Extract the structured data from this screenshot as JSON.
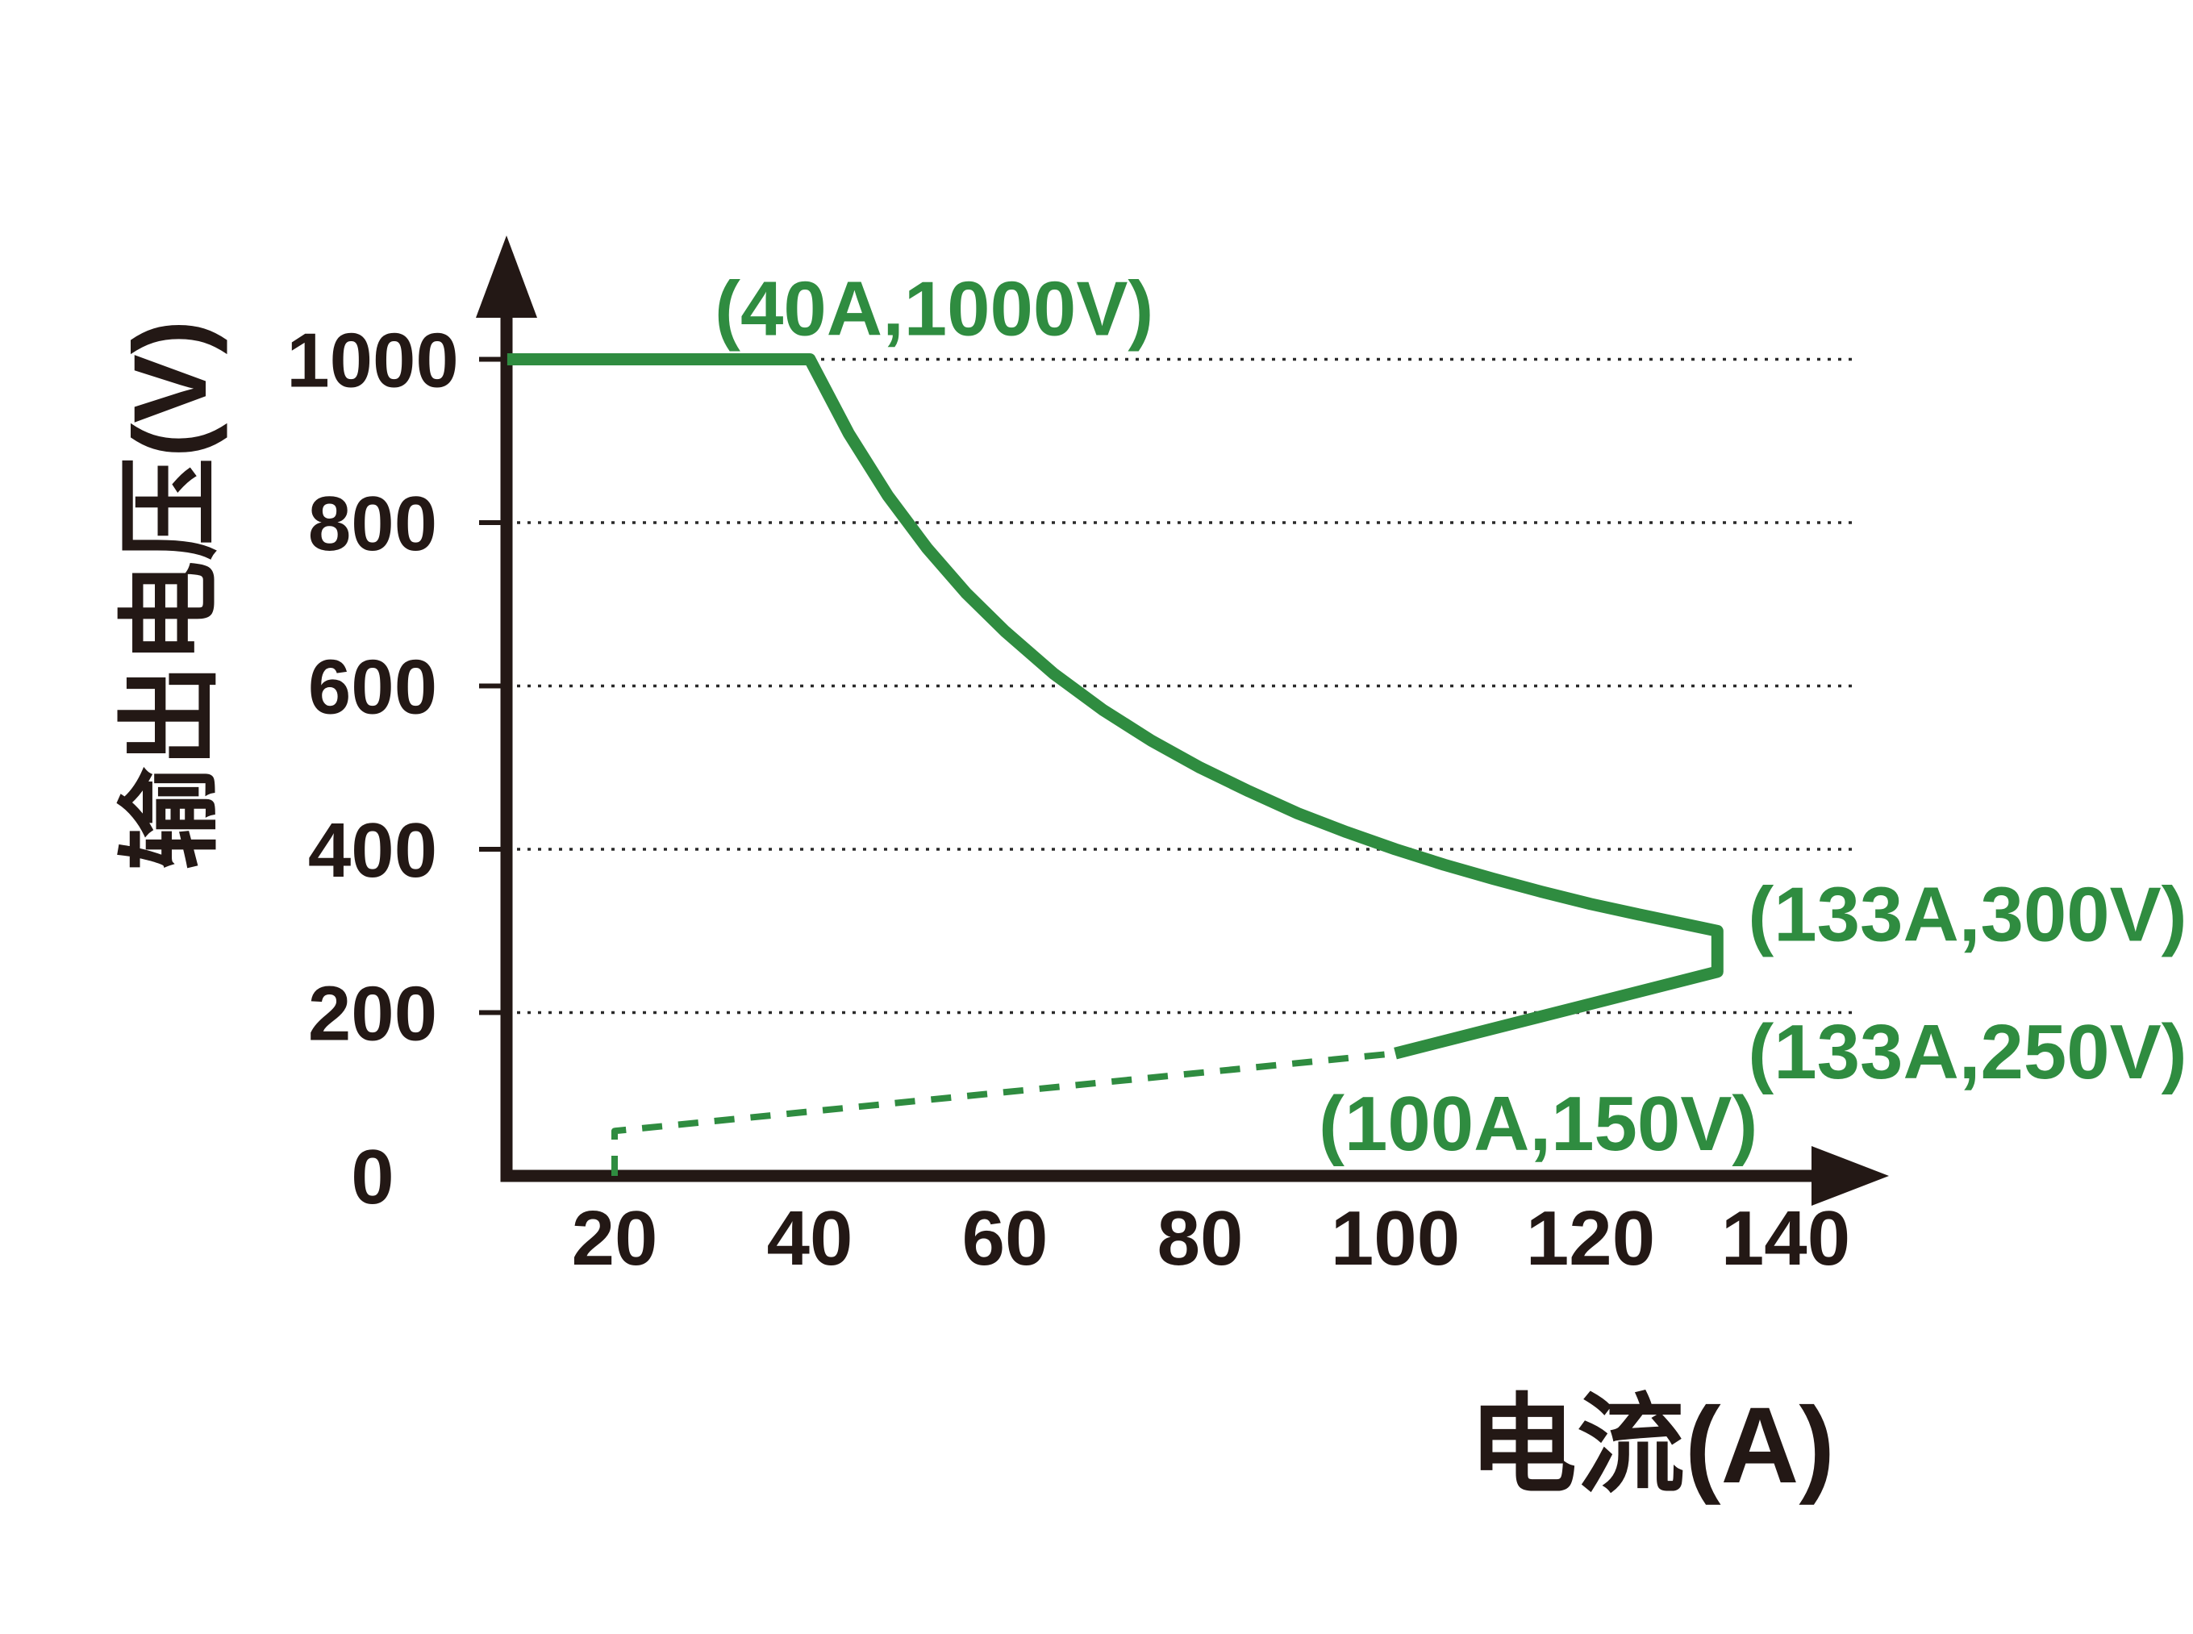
{
  "chart_data": {
    "type": "line",
    "title": "",
    "xlabel": "电流(A)",
    "ylabel": "输出电压(V)",
    "x_ticks": [
      20,
      40,
      60,
      80,
      100,
      120,
      140
    ],
    "y_ticks": [
      0,
      200,
      400,
      600,
      800,
      1000
    ],
    "xlim": [
      9,
      145
    ],
    "ylim": [
      0,
      1150
    ],
    "grid": {
      "y_values": [
        200,
        400,
        600,
        800,
        1000
      ],
      "style": "dotted"
    },
    "colors": {
      "curve": "#2f8c40",
      "axis": "#231815",
      "grid": "#2a2a2a",
      "text": "#231815",
      "annotation": "#2f8c40"
    },
    "series": [
      {
        "name": "output-envelope-solid",
        "style": "solid",
        "points": [
          [
            9,
            1000
          ],
          [
            40,
            1000
          ],
          [
            44,
            909
          ],
          [
            48,
            833
          ],
          [
            52,
            769
          ],
          [
            56,
            714
          ],
          [
            60,
            667
          ],
          [
            65,
            615
          ],
          [
            70,
            571
          ],
          [
            75,
            533
          ],
          [
            80,
            500
          ],
          [
            85,
            471
          ],
          [
            90,
            444
          ],
          [
            95,
            421
          ],
          [
            100,
            400
          ],
          [
            105,
            381
          ],
          [
            110,
            364
          ],
          [
            115,
            348
          ],
          [
            120,
            333
          ],
          [
            125,
            320
          ],
          [
            129,
            310
          ],
          [
            133,
            300
          ],
          [
            133,
            250
          ],
          [
            100,
            150
          ]
        ]
      },
      {
        "name": "lower-boundary-dashed",
        "style": "dashed",
        "points": [
          [
            20,
            0
          ],
          [
            20,
            55
          ],
          [
            100,
            150
          ]
        ]
      }
    ],
    "point_labels": [
      {
        "text": "(40A,1000V)",
        "x": 40,
        "y": 1000
      },
      {
        "text": "(133A,300V)",
        "x": 133,
        "y": 300
      },
      {
        "text": "(133A,250V)",
        "x": 133,
        "y": 250
      },
      {
        "text": "(100A,150V)",
        "x": 100,
        "y": 150
      }
    ]
  }
}
